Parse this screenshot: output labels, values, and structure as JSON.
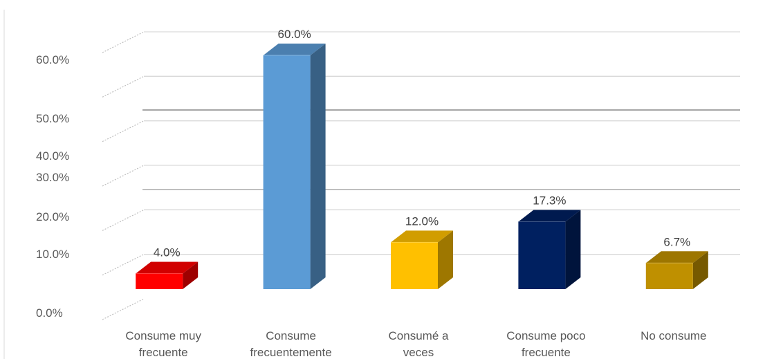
{
  "chart_data": {
    "type": "bar",
    "style": "3d-column",
    "categories": [
      [
        "Consume muy",
        "frecuente"
      ],
      [
        "Consume",
        "frecuentemente"
      ],
      [
        "Consumé a",
        "veces"
      ],
      [
        "Consume poco",
        "frecuente"
      ],
      [
        "No consume"
      ]
    ],
    "values": [
      4.0,
      60.0,
      12.0,
      17.3,
      6.7
    ],
    "data_labels": [
      "4.0%",
      "60.0%",
      "12.0%",
      "17.3%",
      "6.7%"
    ],
    "y_tick_labels": [
      "0.0%",
      "10.0%",
      "20.0%",
      "30.0%",
      "40.0%",
      "50.0%",
      "60.0%"
    ],
    "ylim": [
      0,
      60
    ],
    "grid": true,
    "legend": "none",
    "colors": [
      "#ff0000",
      "#5b9bd5",
      "#ffc000",
      "#002060",
      "#bf9000"
    ],
    "grid_color": "#d9d9d9",
    "axis_text_color": "#595959"
  }
}
